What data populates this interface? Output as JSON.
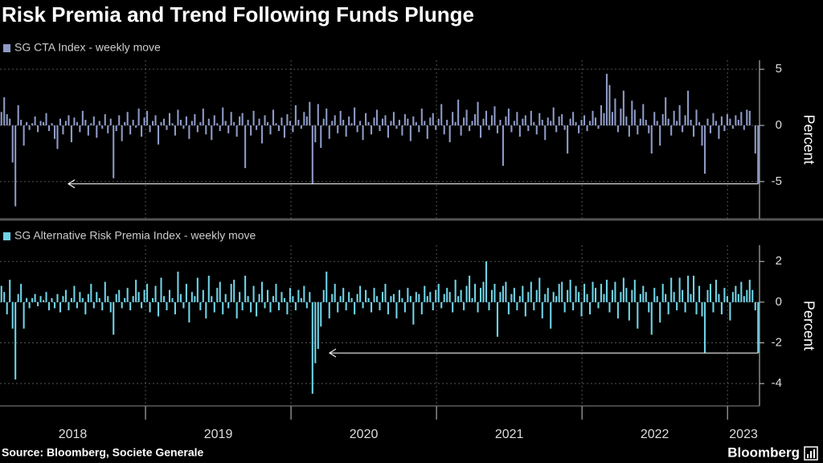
{
  "title": "Risk Premia and Trend Following Funds Plunge",
  "source": "Source: Bloomberg, Societe Generale",
  "logo": "Bloomberg",
  "chart_data": [
    {
      "type": "bar",
      "series": [
        {
          "name": "SG CTA Index - weekly move",
          "color": "#8e9ac6",
          "values": [
            1.2,
            2.5,
            1.0,
            0.6,
            -3.3,
            -7.2,
            1.8,
            0.5,
            -1.8,
            0.3,
            -0.4,
            0.2,
            0.8,
            -0.6,
            0.4,
            0.3,
            1.1,
            -0.5,
            0.2,
            -1.2,
            -2.1,
            0.6,
            -0.8,
            0.4,
            0.9,
            -1.5,
            0.7,
            0.3,
            -0.6,
            1.3,
            0.5,
            -0.9,
            0.2,
            0.8,
            -1.1,
            0.4,
            -0.3,
            1.0,
            -0.7,
            0.6,
            -4.7,
            -0.5,
            0.9,
            -1.4,
            0.3,
            1.2,
            -0.8,
            0.5,
            -0.2,
            1.5,
            -1.0,
            0.7,
            1.3,
            -0.6,
            0.4,
            0.9,
            -1.7,
            0.3,
            0.6,
            -0.4,
            1.1,
            0.2,
            -0.9,
            1.4,
            0.5,
            -0.3,
            0.8,
            -1.2,
            0.4,
            1.0,
            -0.6,
            0.3,
            1.5,
            -0.8,
            0.6,
            -1.3,
            0.9,
            0.2,
            -0.5,
            1.6,
            0.4,
            -0.7,
            1.2,
            0.3,
            -1.0,
            0.8,
            1.1,
            -3.8,
            0.5,
            -0.9,
            1.3,
            -0.4,
            0.6,
            -1.6,
            0.9,
            0.3,
            -0.8,
            1.4,
            0.2,
            -0.5,
            0.7,
            -1.1,
            1.0,
            0.4,
            -0.6,
            1.8,
            0.5,
            -0.3,
            1.2,
            0.8,
            2.1,
            -5.2,
            -1.5,
            1.9,
            -2.0,
            0.6,
            1.5,
            -1.2,
            0.4,
            0.9,
            -0.7,
            1.3,
            0.5,
            -1.0,
            0.8,
            0.2,
            1.6,
            -0.6,
            0.4,
            -1.3,
            1.1,
            0.3,
            -0.8,
            0.7,
            1.4,
            -0.5,
            0.6,
            0.9,
            -1.1,
            0.4,
            1.2,
            -0.3,
            0.5,
            -0.9,
            1.0,
            0.6,
            -1.4,
            0.8,
            0.3,
            -0.6,
            1.5,
            0.4,
            -1.2,
            0.7,
            1.1,
            -0.4,
            0.6,
            1.9,
            -0.8,
            0.5,
            -1.5,
            1.2,
            0.3,
            2.3,
            -0.9,
            0.7,
            1.4,
            -0.5,
            0.4,
            1.0,
            2.1,
            -1.1,
            0.6,
            1.3,
            -0.4,
            0.9,
            1.7,
            -0.7,
            0.5,
            -3.6,
            0.8,
            1.5,
            -0.6,
            0.4,
            1.2,
            -1.0,
            0.6,
            0.9,
            -0.5,
            1.3,
            0.3,
            -0.8,
            1.1,
            0.5,
            -1.3,
            0.7,
            0.4,
            1.6,
            -0.6,
            0.8,
            1.0,
            -0.4,
            -2.5,
            0.6,
            1.2,
            0.3,
            -0.7,
            0.5,
            0.9,
            -0.5,
            0.4,
            1.3,
            0.7,
            -0.3,
            1.8,
            1.1,
            4.6,
            3.6,
            1.2,
            2.4,
            -0.6,
            1.5,
            3.1,
            0.8,
            -1.0,
            2.2,
            1.4,
            -0.8,
            0.6,
            1.9,
            0.5,
            -0.7,
            -2.5,
            1.2,
            0.4,
            -1.8,
            1.0,
            2.5,
            0.6,
            -0.9,
            1.3,
            0.4,
            1.8,
            -0.6,
            0.9,
            3.1,
            0.5,
            -1.0,
            1.4,
            0.3,
            -1.8,
            -4.3,
            0.6,
            -0.7,
            1.1,
            0.4,
            -1.2,
            0.8,
            -0.5,
            1.0,
            0.6,
            -0.3,
            0.9,
            0.5,
            1.2,
            -0.4,
            1.4,
            1.3,
            0.0,
            -2.5,
            -5.2
          ]
        }
      ],
      "ylim": [
        -8.3,
        5.8
      ],
      "yticks": [
        -5,
        0,
        5
      ],
      "y_label": "Percent",
      "grid": true
    },
    {
      "type": "bar",
      "series": [
        {
          "name": "SG Alternative Risk Premia Index - weekly move",
          "color": "#6fd3e6",
          "values": [
            0.8,
            0.5,
            -0.6,
            1.1,
            -1.3,
            -3.8,
            0.4,
            0.9,
            -1.3,
            0.2,
            -0.3,
            0.2,
            0.4,
            -0.2,
            0.3,
            0.1,
            0.5,
            -0.4,
            0.2,
            -0.3,
            0.4,
            -0.5,
            0.3,
            0.6,
            -0.4,
            0.2,
            0.8,
            -0.3,
            0.5,
            0.2,
            -0.6,
            0.4,
            0.9,
            -0.3,
            0.5,
            0.2,
            -0.4,
            1.0,
            0.3,
            -0.5,
            -1.6,
            0.4,
            0.6,
            -0.3,
            0.2,
            0.7,
            -0.4,
            0.3,
            1.1,
            0.5,
            -0.3,
            0.6,
            0.9,
            -0.5,
            0.2,
            0.8,
            -0.7,
            1.2,
            0.3,
            -0.4,
            0.6,
            0.2,
            -0.6,
            1.5,
            0.4,
            -0.3,
            0.9,
            -1.0,
            0.5,
            0.3,
            1.2,
            -0.4,
            0.6,
            -0.8,
            1.3,
            0.3,
            -0.5,
            0.7,
            1.0,
            -0.6,
            0.4,
            -0.3,
            0.9,
            1.1,
            -0.8,
            0.5,
            -0.4,
            1.3,
            0.3,
            -0.5,
            0.8,
            -0.7,
            0.4,
            1.0,
            -0.3,
            0.6,
            -0.5,
            0.3,
            0.9,
            -0.4,
            0.5,
            0.2,
            -0.6,
            0.7,
            0.3,
            -0.4,
            0.6,
            0.2,
            0.8,
            -0.3,
            0.5,
            -4.5,
            -3.0,
            -2.3,
            -1.2,
            0.6,
            1.5,
            -0.8,
            0.4,
            0.9,
            -0.5,
            0.3,
            0.7,
            -0.4,
            0.5,
            0.2,
            -0.6,
            0.4,
            0.8,
            -0.3,
            0.6,
            0.2,
            -0.5,
            0.7,
            0.3,
            -0.4,
            0.5,
            0.9,
            -0.6,
            0.3,
            0.4,
            -0.8,
            0.6,
            0.2,
            -0.5,
            0.7,
            0.3,
            -1.1,
            0.5,
            0.4,
            -0.6,
            0.8,
            0.3,
            0.5,
            -0.4,
            0.6,
            0.9,
            -0.3,
            0.4,
            0.7,
            0.5,
            -0.5,
            1.1,
            0.3,
            0.6,
            -0.4,
            0.8,
            1.3,
            0.2,
            0.9,
            -0.5,
            0.7,
            1.0,
            2.0,
            -0.4,
            0.6,
            0.9,
            -1.7,
            0.5,
            0.8,
            1.0,
            -0.6,
            0.4,
            0.7,
            -0.4,
            0.3,
            0.8,
            -0.7,
            0.5,
            1.0,
            -0.4,
            0.6,
            1.2,
            -0.8,
            0.4,
            0.7,
            -1.3,
            0.5,
            0.3,
            0.9,
            1.0,
            -0.5,
            0.6,
            1.1,
            -0.4,
            0.8,
            0.5,
            -0.7,
            0.9,
            0.4,
            -0.6,
            1.0,
            0.7,
            -0.3,
            0.9,
            0.4,
            1.1,
            -0.5,
            0.6,
            1.0,
            -0.8,
            0.5,
            1.2,
            0.7,
            -0.9,
            0.6,
            1.1,
            -1.3,
            0.4,
            0.8,
            0.5,
            -0.5,
            -1.6,
            0.7,
            0.3,
            -1.0,
            0.9,
            0.4,
            -0.6,
            1.2,
            0.5,
            -0.4,
            1.2,
            0.6,
            -0.5,
            1.3,
            0.4,
            1.3,
            -0.6,
            0.8,
            -0.7,
            -2.5,
            0.6,
            0.9,
            -0.5,
            1.1,
            0.4,
            -0.6,
            0.7,
            0.3,
            -0.9,
            0.5,
            0.8,
            0.4,
            1.0,
            0.3,
            0.6,
            1.1,
            0.6,
            -0.4,
            -2.5
          ]
        }
      ],
      "ylim": [
        -5.1,
        2.8
      ],
      "yticks": [
        -4,
        -2,
        0,
        2
      ],
      "y_label": "Percent",
      "grid": true,
      "xlim": [
        2018,
        2023.22
      ],
      "xticks": [
        2018,
        2019,
        2020,
        2021,
        2022,
        2023
      ]
    }
  ]
}
